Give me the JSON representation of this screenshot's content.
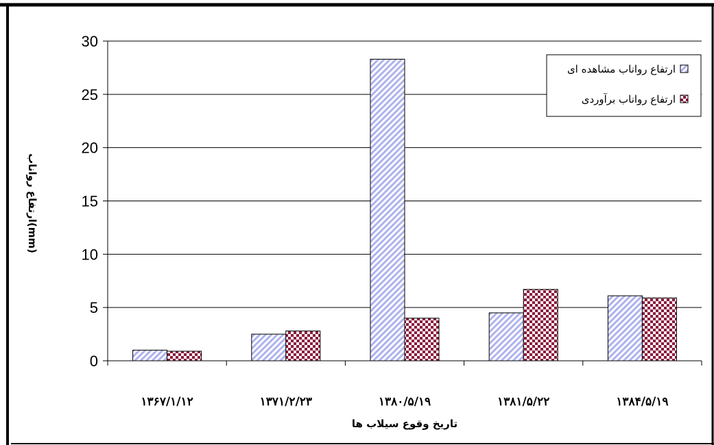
{
  "chart_data": {
    "type": "bar",
    "categories": [
      "۱۳۶۷/۱/۱۲",
      "۱۳۷۱/۲/۲۳",
      "۱۳۸۰/۵/۱۹",
      "۱۳۸۱/۵/۲۲",
      "۱۳۸۴/۵/۱۹"
    ],
    "series": [
      {
        "name": "ارتفاع رواناب مشاهده ای",
        "values": [
          1.0,
          2.5,
          28.3,
          4.5,
          6.1
        ],
        "color": "#b8bcef",
        "pattern": "diagonal-hatch"
      },
      {
        "name": "ارتفاع رواناب برآوردی",
        "values": [
          0.9,
          2.8,
          4.0,
          6.7,
          5.9
        ],
        "color": "#8b1a3c",
        "pattern": "checkerboard"
      }
    ],
    "title": "",
    "xlabel": "تاریخ وقوع سیلاب ها",
    "ylabel": "ارتفاع رواناب(mm)",
    "ylim": [
      0,
      30
    ],
    "yticks": [
      "0",
      "5",
      "10",
      "15",
      "20",
      "25",
      "30"
    ],
    "grid": true,
    "legend_position": "top-right"
  }
}
